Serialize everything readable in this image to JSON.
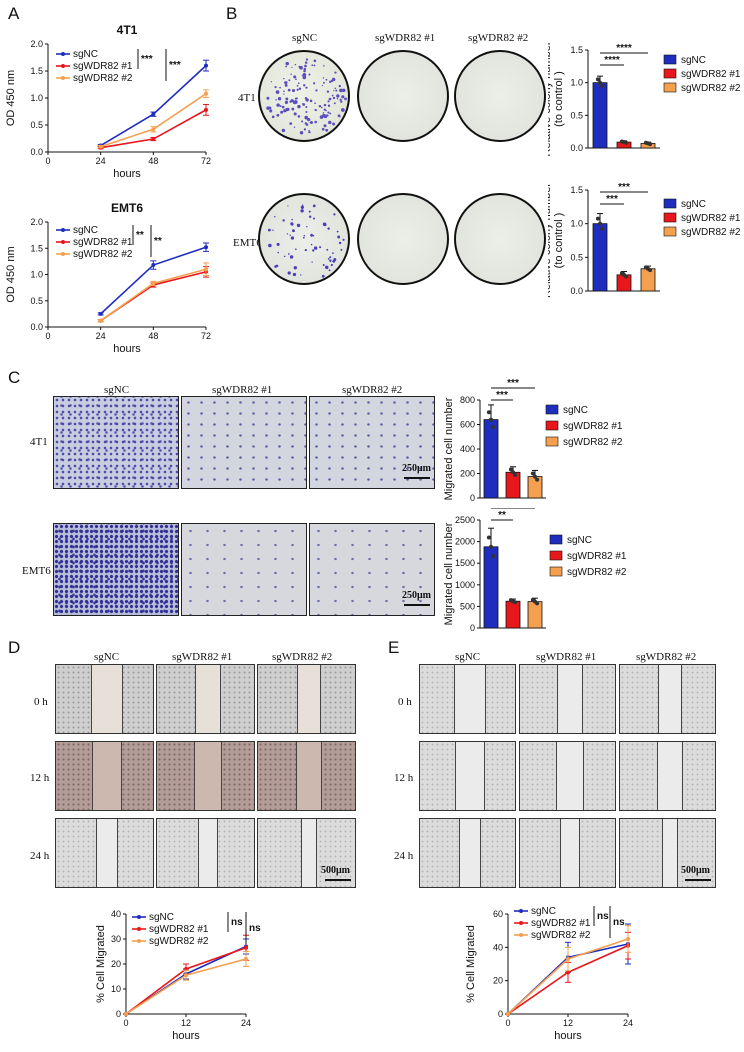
{
  "panel_labels": {
    "A": "A",
    "B": "B",
    "C": "C",
    "D": "D",
    "E": "E"
  },
  "colors": {
    "sgNC": "#1f2dbf",
    "sgWDR82_1": "#e8171b",
    "sgWDR82_2": "#f5a04f"
  },
  "legend": [
    "sgNC",
    "sgWDR82 #1",
    "sgWDR82 #2"
  ],
  "B": {
    "columns": [
      "sgNC",
      "sgWDR82 #1",
      "sgWDR82 #2"
    ],
    "rows": [
      "4T1",
      "EMT6"
    ]
  },
  "C": {
    "columns": [
      "sgNC",
      "sgWDR82 #1",
      "sgWDR82 #2"
    ],
    "rows": [
      "4T1",
      "EMT6"
    ],
    "scale": "250μm"
  },
  "D": {
    "columns": [
      "sgNC",
      "sgWDR82 #1",
      "sgWDR82 #2"
    ],
    "rows": [
      "0 h",
      "12 h",
      "24 h"
    ],
    "scale": "500μm"
  },
  "E": {
    "columns": [
      "sgNC",
      "sgWDR82 #1",
      "sgWDR82 #2"
    ],
    "rows": [
      "0 h",
      "12 h",
      "24 h"
    ],
    "scale": "500μm"
  },
  "chart_data": [
    {
      "id": "A-4T1",
      "type": "line",
      "title": "4T1",
      "xlabel": "hours",
      "ylabel": "OD 450 nm",
      "x": [
        0,
        24,
        48,
        72
      ],
      "xticks": [
        0,
        24,
        48,
        72
      ],
      "xlim": [
        0,
        72
      ],
      "ylim": [
        0,
        2.0
      ],
      "yticks": [
        "0.0",
        "0.5",
        "1.0",
        "1.5",
        "2.0"
      ],
      "series": [
        {
          "name": "sgNC",
          "values": [
            null,
            0.12,
            0.7,
            1.6
          ],
          "err": [
            0,
            0.02,
            0.04,
            0.1
          ]
        },
        {
          "name": "sgWDR82 #1",
          "values": [
            null,
            0.08,
            0.24,
            0.78
          ],
          "err": [
            0,
            0.02,
            0.03,
            0.1
          ]
        },
        {
          "name": "sgWDR82 #2",
          "values": [
            null,
            0.1,
            0.42,
            1.08
          ],
          "err": [
            0,
            0.02,
            0.05,
            0.07
          ]
        }
      ],
      "sig": [
        "***",
        "***"
      ]
    },
    {
      "id": "A-EMT6",
      "type": "line",
      "title": "EMT6",
      "xlabel": "hours",
      "ylabel": "OD 450 nm",
      "x": [
        0,
        24,
        48,
        72
      ],
      "xticks": [
        0,
        24,
        48,
        72
      ],
      "xlim": [
        0,
        72
      ],
      "ylim": [
        0,
        2.0
      ],
      "yticks": [
        "0.0",
        "0.5",
        "1.0",
        "1.5",
        "2.0"
      ],
      "series": [
        {
          "name": "sgNC",
          "values": [
            null,
            0.25,
            1.18,
            1.52
          ],
          "err": [
            0,
            0.02,
            0.08,
            0.08
          ]
        },
        {
          "name": "sgWDR82 #1",
          "values": [
            null,
            0.12,
            0.8,
            1.05
          ],
          "err": [
            0,
            0.02,
            0.04,
            0.1
          ]
        },
        {
          "name": "sgWDR82 #2",
          "values": [
            null,
            0.12,
            0.83,
            1.1
          ],
          "err": [
            0,
            0.02,
            0.04,
            0.12
          ]
        }
      ],
      "sig": [
        "**",
        "**"
      ]
    },
    {
      "id": "B-4T1",
      "type": "bar",
      "ylabel": "Relative colony number (to control )",
      "categories": [
        "sgNC",
        "sgWDR82 #1",
        "sgWDR82 #2"
      ],
      "values": [
        1.0,
        0.09,
        0.07
      ],
      "err": [
        0.1,
        0.02,
        0.02
      ],
      "ylim": [
        0,
        1.5
      ],
      "yticks": [
        "0.0",
        "0.5",
        "1.0",
        "1.5"
      ],
      "sig": [
        "****",
        "****"
      ]
    },
    {
      "id": "B-EMT6",
      "type": "bar",
      "ylabel": "Relative colony number (to control )",
      "categories": [
        "sgNC",
        "sgWDR82 #1",
        "sgWDR82 #2"
      ],
      "values": [
        1.0,
        0.24,
        0.33
      ],
      "err": [
        0.15,
        0.05,
        0.04
      ],
      "ylim": [
        0,
        1.5
      ],
      "yticks": [
        "0.0",
        "0.5",
        "1.0",
        "1.5"
      ],
      "sig": [
        "***",
        "***"
      ]
    },
    {
      "id": "C-4T1",
      "type": "bar",
      "ylabel": "Migrated cell number",
      "categories": [
        "sgNC",
        "sgWDR82 #1",
        "sgWDR82 #2"
      ],
      "values": [
        640,
        210,
        175
      ],
      "err": [
        120,
        45,
        50
      ],
      "ylim": [
        0,
        800
      ],
      "yticks": [
        "0",
        "200",
        "400",
        "600",
        "800"
      ],
      "sig": [
        "***",
        "***"
      ]
    },
    {
      "id": "C-EMT6",
      "type": "bar",
      "ylabel": "Migrated cell number",
      "categories": [
        "sgNC",
        "sgWDR82 #1",
        "sgWDR82 #2"
      ],
      "values": [
        1880,
        620,
        610
      ],
      "err": [
        430,
        50,
        80
      ],
      "ylim": [
        0,
        2500
      ],
      "yticks": [
        "0",
        "500",
        "1000",
        "1500",
        "2000",
        "2500"
      ],
      "sig": [
        "**",
        "**"
      ]
    },
    {
      "id": "D",
      "type": "line",
      "xlabel": "hours",
      "ylabel": "% Cell Migrated",
      "x": [
        0,
        12,
        24
      ],
      "xticks": [
        0,
        12,
        24
      ],
      "xlim": [
        0,
        24
      ],
      "ylim": [
        0,
        40
      ],
      "yticks": [
        "0",
        "10",
        "20",
        "30",
        "40"
      ],
      "series": [
        {
          "name": "sgNC",
          "values": [
            0,
            16,
            27
          ],
          "err": [
            0,
            2,
            3
          ]
        },
        {
          "name": "sgWDR82 #1",
          "values": [
            0,
            18,
            26.5
          ],
          "err": [
            0,
            2,
            5
          ]
        },
        {
          "name": "sgWDR82 #2",
          "values": [
            0,
            15.5,
            22
          ],
          "err": [
            0,
            2,
            3
          ]
        }
      ],
      "sig": [
        "ns",
        "ns"
      ]
    },
    {
      "id": "E",
      "type": "line",
      "xlabel": "hours",
      "ylabel": "% Cell Migrated",
      "x": [
        0,
        12,
        24
      ],
      "xticks": [
        0,
        12,
        24
      ],
      "xlim": [
        0,
        24
      ],
      "ylim": [
        0,
        60
      ],
      "yticks": [
        "0",
        "20",
        "40",
        "60"
      ],
      "series": [
        {
          "name": "sgNC",
          "values": [
            0,
            34,
            42
          ],
          "err": [
            0,
            9,
            12
          ]
        },
        {
          "name": "sgWDR82 #1",
          "values": [
            0,
            25,
            41
          ],
          "err": [
            0,
            6,
            8
          ]
        },
        {
          "name": "sgWDR82 #2",
          "values": [
            0,
            33,
            45
          ],
          "err": [
            0,
            7,
            8
          ]
        }
      ],
      "sig": [
        "ns",
        "ns"
      ]
    }
  ]
}
